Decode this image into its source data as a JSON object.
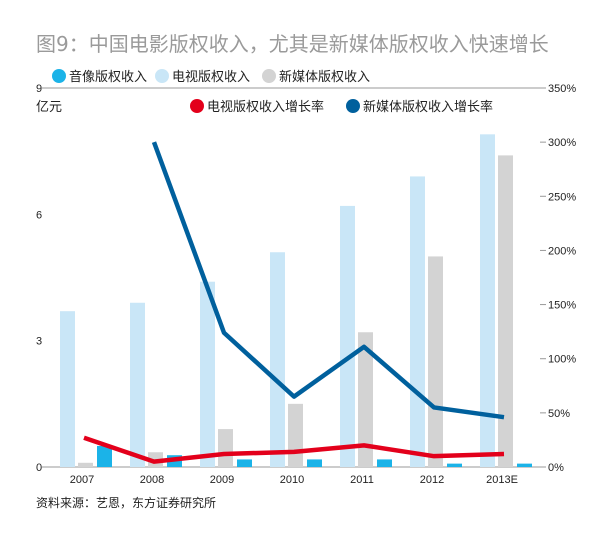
{
  "title": "图9：中国电影版权收入，尤其是新媒体版权收入快速增长",
  "unit": "亿元",
  "source": "资料来源：艺恩，东方证券研究所",
  "chart_data": {
    "type": "bar+line",
    "categories": [
      "2007",
      "2008",
      "2009",
      "2010",
      "2011",
      "2012",
      "2013E"
    ],
    "left_axis": {
      "label": "亿元",
      "range": [
        0,
        9
      ],
      "ticks": [
        "0",
        "3",
        "6",
        "9"
      ]
    },
    "right_axis": {
      "range": [
        0,
        350
      ],
      "ticks": [
        "0%",
        "50%",
        "100%",
        "150%",
        "200%",
        "250%",
        "300%",
        "350%"
      ]
    },
    "bars": [
      {
        "name": "音像版权收入",
        "color": "#1bb3e8",
        "values": [
          0.5,
          0.28,
          0.18,
          0.18,
          0.18,
          0.08,
          0.08
        ]
      },
      {
        "name": "电视版权收入",
        "color": "#c9e6f7",
        "values": [
          3.7,
          3.9,
          4.4,
          5.1,
          6.2,
          6.9,
          7.9
        ]
      },
      {
        "name": "新媒体版权收入",
        "color": "#d3d3d3",
        "values": [
          0.1,
          0.35,
          0.9,
          1.5,
          3.2,
          5.0,
          7.4
        ]
      }
    ],
    "lines": [
      {
        "name": "电视版权收入增长率",
        "color": "#e3001b",
        "values": [
          27,
          5,
          12,
          14,
          20,
          10,
          12
        ]
      },
      {
        "name": "新媒体版权收入增长率",
        "color": "#00609d",
        "values": [
          null,
          300,
          124,
          65,
          111,
          55,
          46
        ]
      }
    ],
    "legend_placement": "top"
  }
}
